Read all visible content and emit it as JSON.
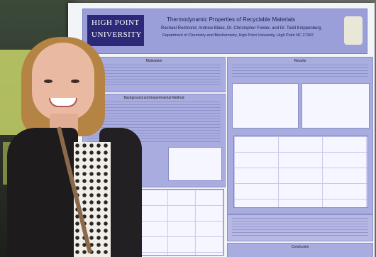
{
  "poster": {
    "logo_line1": "HIGH POINT",
    "logo_line2": "UNIVERSITY",
    "title": "Thermodynamic Properties of Recyclable Materials",
    "authors": "Rachael Redmond, Andrew Blake, Dr. Christopher Fowler, and Dr. Todd Knippenberg",
    "department": "Department of Chemistry and Biochemistry, High Point University, High Point NC 27262",
    "sections": [
      "Motivation",
      "Background and Experimental Method",
      "Results",
      "Conclusion"
    ]
  },
  "colors": {
    "poster_panel": "#a9acde",
    "logo_bg": "#2c2a78",
    "header_bg": "#9b9fd9"
  }
}
